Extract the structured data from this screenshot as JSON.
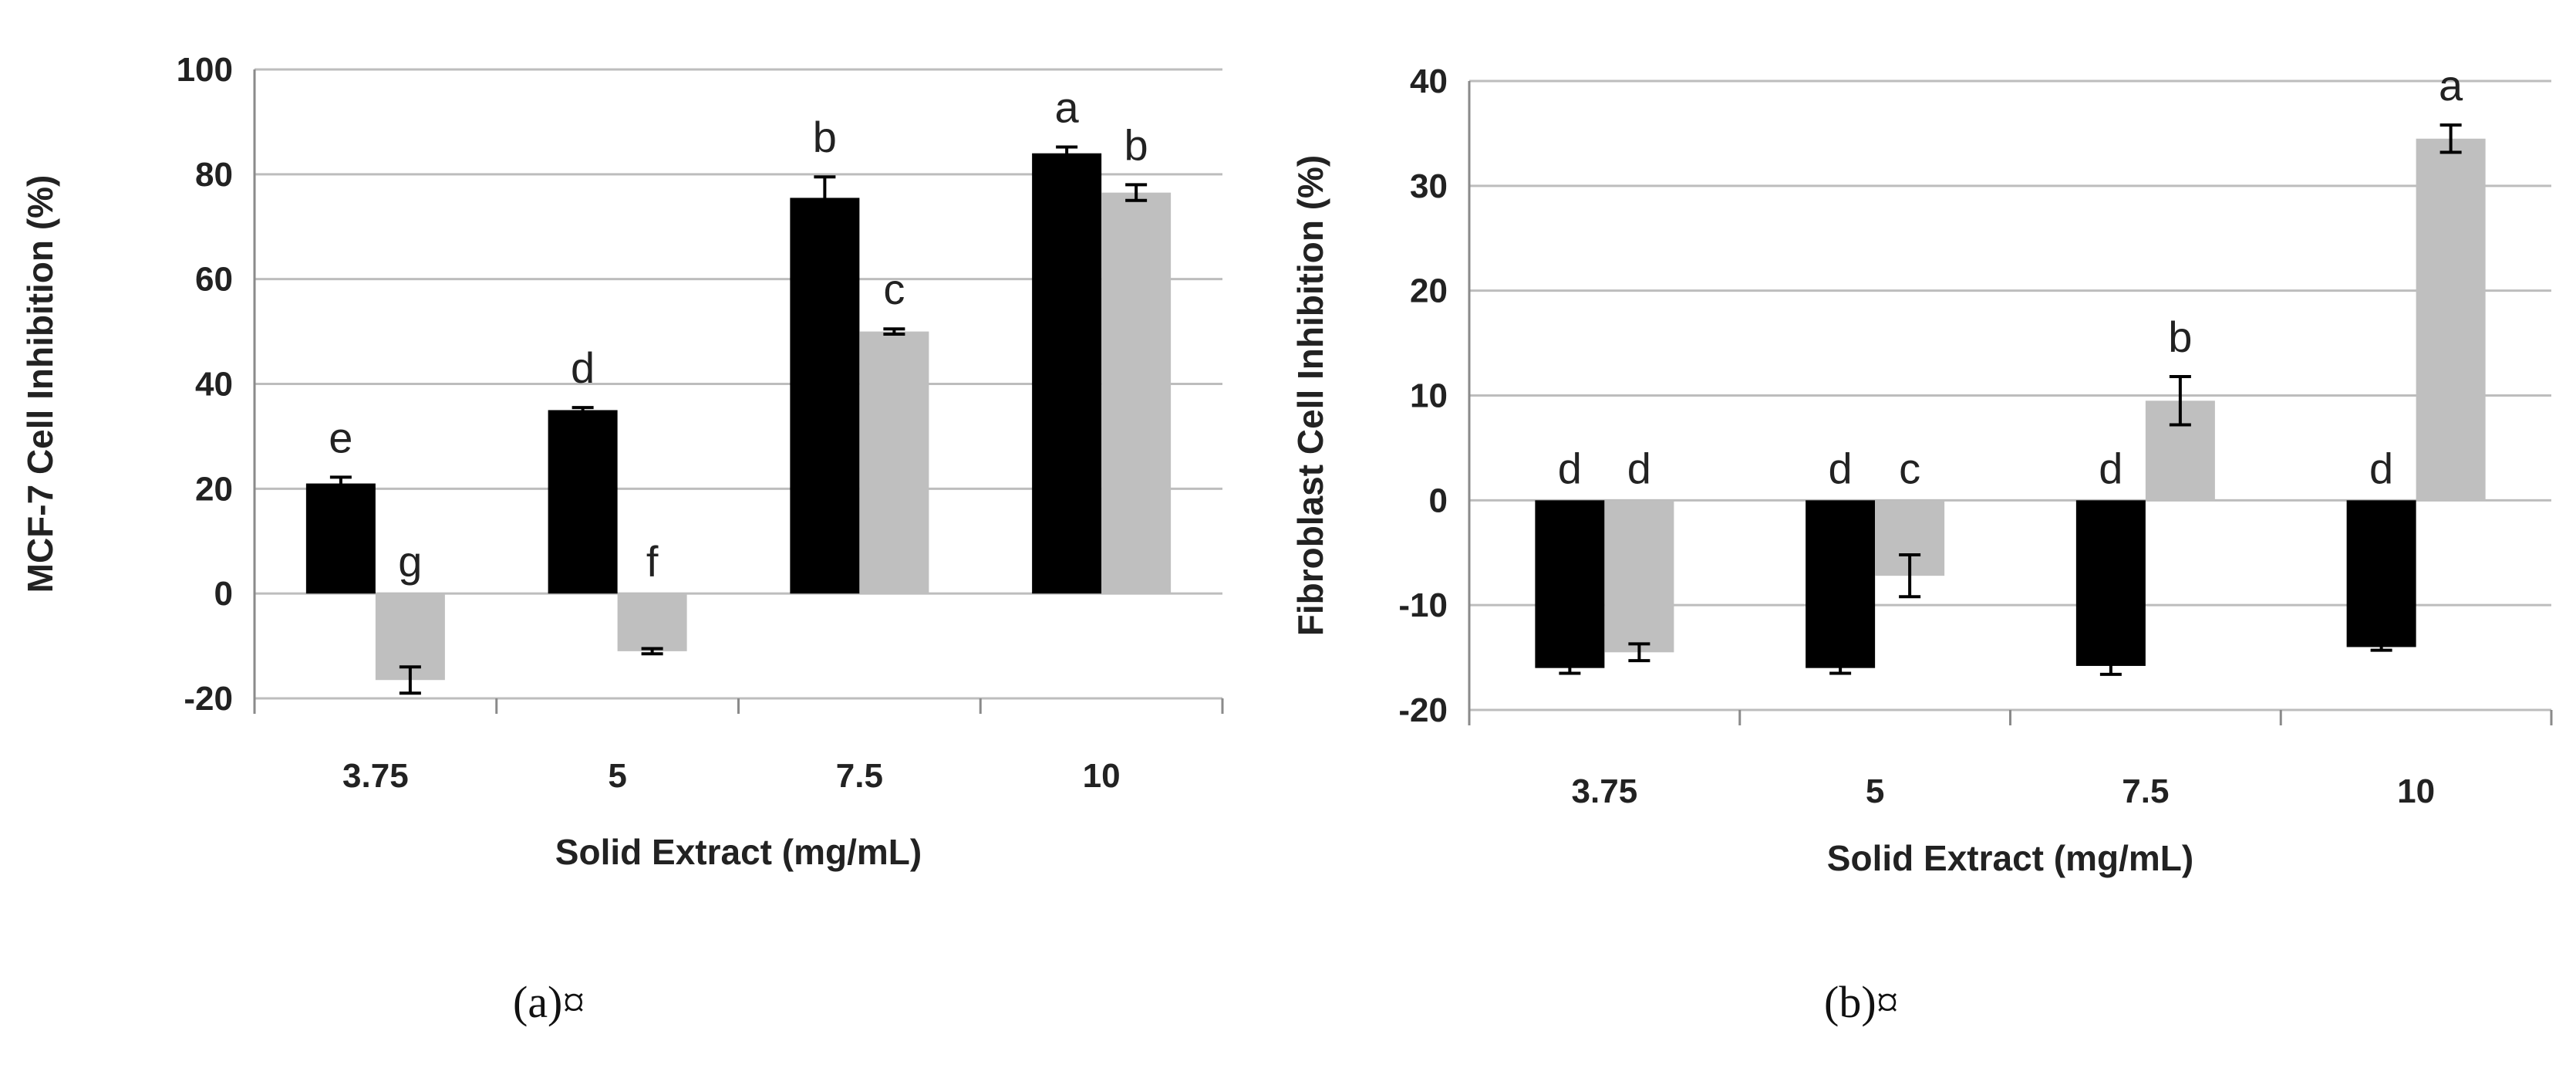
{
  "chart_data": [
    {
      "type": "bar",
      "panel": "a",
      "caption": "(a)¤",
      "title": "",
      "xlabel": "Solid Extract (mg/mL)",
      "ylabel": "MCF-7 Cell Inhibition (%)",
      "ylim": [
        -20,
        100
      ],
      "yticks": [
        -20,
        0,
        20,
        40,
        60,
        80,
        100
      ],
      "grid": true,
      "legend": "none",
      "categories": [
        "3.75",
        "5",
        "7.5",
        "10"
      ],
      "series": [
        {
          "name": "black",
          "color": "#000000",
          "values": [
            21,
            35,
            75.5,
            84
          ],
          "errors": [
            1.2,
            0.5,
            4,
            1.2
          ],
          "letters": [
            "e",
            "d",
            "b",
            "a"
          ]
        },
        {
          "name": "gray",
          "color": "#bfbfbf",
          "values": [
            -16.5,
            -11,
            50,
            76.5
          ],
          "errors": [
            2.5,
            0.5,
            0.5,
            1.5
          ],
          "letters": [
            "g",
            "f",
            "c",
            "b"
          ]
        }
      ]
    },
    {
      "type": "bar",
      "panel": "b",
      "caption": "(b)¤",
      "title": "",
      "xlabel": "Solid Extract (mg/mL)",
      "ylabel": "Fibroblast Cell Inhibition (%)",
      "ylim": [
        -20,
        40
      ],
      "yticks": [
        -20,
        -10,
        0,
        10,
        20,
        30,
        40
      ],
      "grid": true,
      "legend": "none",
      "categories": [
        "3.75",
        "5",
        "7.5",
        "10"
      ],
      "series": [
        {
          "name": "black",
          "color": "#000000",
          "values": [
            -16,
            -16,
            -15.8,
            -14
          ],
          "errors": [
            0.5,
            0.5,
            0.8,
            0.3
          ],
          "letters": [
            "d",
            "d",
            "d",
            "d"
          ]
        },
        {
          "name": "gray",
          "color": "#bfbfbf",
          "values": [
            -14.5,
            -7.2,
            9.5,
            34.5
          ],
          "errors": [
            0.8,
            2,
            2.3,
            1.3
          ],
          "letters": [
            "d",
            "c",
            "b",
            "a"
          ]
        }
      ]
    }
  ]
}
